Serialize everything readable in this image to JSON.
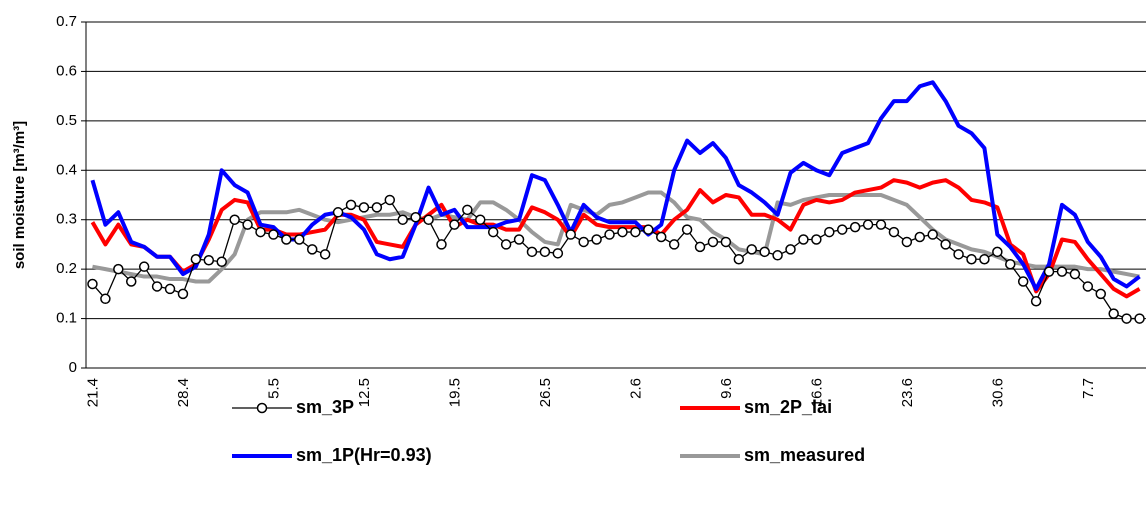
{
  "chart_data": {
    "type": "line",
    "y_label": "soil moisture [m³/m³]",
    "categories": [
      "21.4",
      null,
      null,
      null,
      null,
      null,
      null,
      "28.4",
      null,
      null,
      null,
      null,
      null,
      null,
      "5.5",
      null,
      null,
      null,
      null,
      null,
      null,
      "12.5",
      null,
      null,
      null,
      null,
      null,
      null,
      "19.5",
      null,
      null,
      null,
      null,
      null,
      null,
      "26.5",
      null,
      null,
      null,
      null,
      null,
      null,
      "2.6",
      null,
      null,
      null,
      null,
      null,
      null,
      "9.6",
      null,
      null,
      null,
      null,
      null,
      null,
      "16.6",
      null,
      null,
      null,
      null,
      null,
      null,
      "23.6",
      null,
      null,
      null,
      null,
      null,
      null,
      "30.6",
      null,
      null,
      null,
      null,
      null,
      null,
      "7.7",
      null,
      null,
      null,
      null
    ],
    "ylim": [
      0,
      0.7
    ],
    "yticks": [
      0,
      0.1,
      0.2,
      0.3,
      0.4,
      0.5,
      0.6,
      0.7
    ],
    "grid": true,
    "legend": "bottom",
    "series": [
      {
        "name": "sm_3P",
        "color": "#000000",
        "marker": "circle",
        "values": [
          0.17,
          0.14,
          0.2,
          0.175,
          0.205,
          0.165,
          0.16,
          0.15,
          0.22,
          0.218,
          0.215,
          0.3,
          0.29,
          0.275,
          0.27,
          0.26,
          0.26,
          0.24,
          0.23,
          0.315,
          0.33,
          0.325,
          0.325,
          0.34,
          0.3,
          0.305,
          0.3,
          0.25,
          0.29,
          0.32,
          0.3,
          0.275,
          0.25,
          0.26,
          0.235,
          0.235,
          0.232,
          0.27,
          0.255,
          0.26,
          0.27,
          0.275,
          0.275,
          0.28,
          0.265,
          0.25,
          0.28,
          0.245,
          0.255,
          0.255,
          0.22,
          0.24,
          0.235,
          0.228,
          0.24,
          0.26,
          0.26,
          0.275,
          0.28,
          0.285,
          0.29,
          0.29,
          0.275,
          0.255,
          0.265,
          0.27,
          0.25,
          0.23,
          0.22,
          0.22,
          0.235,
          0.21,
          0.175,
          0.135,
          0.195,
          0.195,
          0.19,
          0.165,
          0.15,
          0.11,
          0.1,
          0.1
        ]
      },
      {
        "name": "sm_2P_lai",
        "color": "#ff0000",
        "values": [
          0.295,
          0.25,
          0.29,
          0.25,
          0.245,
          0.225,
          0.225,
          0.195,
          0.21,
          0.26,
          0.32,
          0.34,
          0.335,
          0.28,
          0.28,
          0.27,
          0.27,
          0.275,
          0.28,
          0.31,
          0.31,
          0.3,
          0.255,
          0.25,
          0.245,
          0.29,
          0.31,
          0.33,
          0.285,
          0.3,
          0.29,
          0.29,
          0.28,
          0.28,
          0.325,
          0.315,
          0.3,
          0.265,
          0.31,
          0.29,
          0.285,
          0.285,
          0.285,
          0.285,
          0.27,
          0.3,
          0.32,
          0.36,
          0.335,
          0.35,
          0.345,
          0.31,
          0.31,
          0.3,
          0.28,
          0.33,
          0.34,
          0.335,
          0.34,
          0.355,
          0.36,
          0.365,
          0.38,
          0.375,
          0.365,
          0.375,
          0.38,
          0.365,
          0.34,
          0.335,
          0.325,
          0.25,
          0.23,
          0.155,
          0.19,
          0.26,
          0.255,
          0.22,
          0.19,
          0.16,
          0.145,
          0.16
        ]
      },
      {
        "name": "sm_1P(Hr=0.93)",
        "color": "#0000ff",
        "values": [
          0.38,
          0.29,
          0.315,
          0.255,
          0.245,
          0.225,
          0.225,
          0.19,
          0.205,
          0.27,
          0.4,
          0.37,
          0.355,
          0.29,
          0.285,
          0.26,
          0.26,
          0.29,
          0.31,
          0.315,
          0.305,
          0.28,
          0.23,
          0.22,
          0.225,
          0.29,
          0.365,
          0.31,
          0.32,
          0.285,
          0.285,
          0.285,
          0.295,
          0.3,
          0.39,
          0.38,
          0.33,
          0.275,
          0.33,
          0.305,
          0.295,
          0.295,
          0.295,
          0.27,
          0.29,
          0.4,
          0.46,
          0.435,
          0.455,
          0.425,
          0.37,
          0.355,
          0.335,
          0.31,
          0.395,
          0.415,
          0.4,
          0.39,
          0.435,
          0.445,
          0.455,
          0.505,
          0.54,
          0.54,
          0.57,
          0.578,
          0.54,
          0.49,
          0.475,
          0.445,
          0.27,
          0.245,
          0.21,
          0.16,
          0.21,
          0.33,
          0.31,
          0.255,
          0.225,
          0.18,
          0.165,
          0.185
        ]
      },
      {
        "name": "sm_measured",
        "color": "#999999",
        "values": [
          0.205,
          0.2,
          0.195,
          0.19,
          0.185,
          0.185,
          0.18,
          0.18,
          0.175,
          0.175,
          0.2,
          0.23,
          0.3,
          0.315,
          0.315,
          0.315,
          0.32,
          0.31,
          0.3,
          0.295,
          0.3,
          0.305,
          0.31,
          0.31,
          0.315,
          0.305,
          0.3,
          0.31,
          0.305,
          0.3,
          0.335,
          0.335,
          0.32,
          0.3,
          0.275,
          0.255,
          0.25,
          0.33,
          0.32,
          0.31,
          0.33,
          0.335,
          0.345,
          0.355,
          0.355,
          0.335,
          0.305,
          0.3,
          0.275,
          0.26,
          0.24,
          0.235,
          0.23,
          0.335,
          0.33,
          0.34,
          0.345,
          0.35,
          0.35,
          0.35,
          0.35,
          0.35,
          0.34,
          0.33,
          0.305,
          0.28,
          0.26,
          0.25,
          0.24,
          0.235,
          0.225,
          0.215,
          0.21,
          0.205,
          0.205,
          0.205,
          0.205,
          0.2,
          0.2,
          0.195,
          0.19,
          0.185
        ]
      }
    ]
  }
}
